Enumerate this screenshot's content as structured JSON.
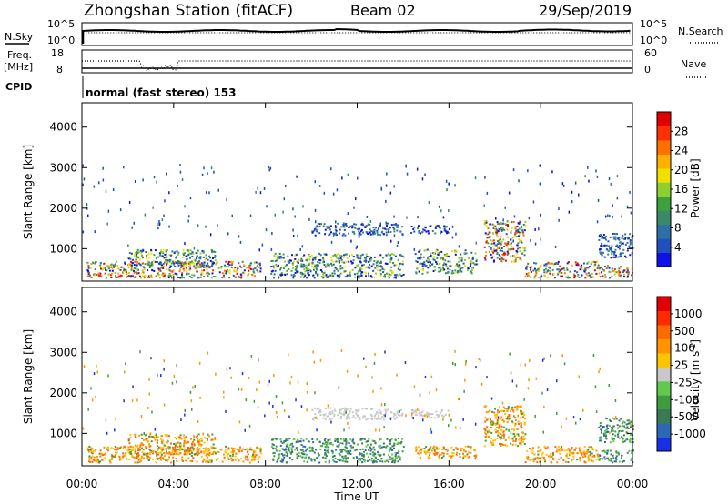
{
  "header": {
    "station": "Zhongshan Station (fitACF)",
    "beam": "Beam 02",
    "date": "29/Sep/2019"
  },
  "top_panels": {
    "nsky_label": "N.Sky",
    "nsky_ticks": [
      "10^5",
      "10^0"
    ],
    "nsearch_label": "N.Search",
    "freq_label": "Freq.",
    "freq_unit": "[MHz]",
    "freq_ticks": [
      "18",
      "8"
    ],
    "nave_ticks": [
      "60",
      "0"
    ],
    "nave_label": "Nave",
    "cpid_label": "CPID",
    "cpid_text": "normal (fast stereo) 153"
  },
  "chart_data": [
    {
      "type": "heatmap",
      "name": "power",
      "ylabel": "Slant Range [km]",
      "yticks": [
        1000,
        2000,
        3000,
        4000
      ],
      "ylim": [
        200,
        4600
      ],
      "xticks": [
        "00:00",
        "04:00",
        "08:00",
        "12:00",
        "16:00",
        "20:00",
        "00:00"
      ],
      "xlim_hours": [
        0,
        24
      ],
      "colorbar": {
        "label": "Power [dB]",
        "ticks": [
          "4",
          "8",
          "12",
          "16",
          "20",
          "24",
          "28"
        ],
        "colors": [
          "#1010e8",
          "#2050c0",
          "#2e6fa8",
          "#3a8a6a",
          "#3da23d",
          "#8ed030",
          "#f0e000",
          "#ffb000",
          "#ff7000",
          "#ff3000",
          "#e00000"
        ]
      },
      "bands": [
        {
          "t0": 0.2,
          "t1": 7.8,
          "r0": 300,
          "r1": 700,
          "level": "high"
        },
        {
          "t0": 2.0,
          "t1": 5.8,
          "r0": 600,
          "r1": 1000,
          "level": "mid"
        },
        {
          "t0": 8.2,
          "t1": 14.0,
          "r0": 300,
          "r1": 900,
          "level": "mid"
        },
        {
          "t0": 10.0,
          "t1": 14.0,
          "r0": 1350,
          "r1": 1650,
          "level": "low"
        },
        {
          "t0": 14.3,
          "t1": 16.0,
          "r0": 1400,
          "r1": 1600,
          "level": "low"
        },
        {
          "t0": 14.5,
          "t1": 17.2,
          "r0": 400,
          "r1": 1000,
          "level": "mid"
        },
        {
          "t0": 17.5,
          "t1": 19.3,
          "r0": 700,
          "r1": 1700,
          "level": "high"
        },
        {
          "t0": 19.3,
          "t1": 22.5,
          "r0": 300,
          "r1": 700,
          "level": "high"
        },
        {
          "t0": 22.5,
          "t1": 24.0,
          "r0": 800,
          "r1": 1400,
          "level": "low"
        },
        {
          "t0": 22.5,
          "t1": 24.0,
          "r0": 300,
          "r1": 600,
          "level": "high"
        }
      ]
    },
    {
      "type": "heatmap",
      "name": "velocity",
      "ylabel": "Slant Range [km]",
      "yticks": [
        1000,
        2000,
        3000,
        4000
      ],
      "ylim": [
        200,
        4600
      ],
      "xticks": [
        "00:00",
        "04:00",
        "08:00",
        "12:00",
        "16:00",
        "20:00",
        "00:00"
      ],
      "xlabel": "Time UT",
      "xlim_hours": [
        0,
        24
      ],
      "colorbar": {
        "label": "Velocity [m s^-1]",
        "ticks": [
          "1000",
          "500",
          "100",
          "25",
          "-25",
          "-100",
          "-500",
          "-1000"
        ],
        "colors": [
          "#1a2ee8",
          "#2f67b8",
          "#3a7a55",
          "#3f9b3f",
          "#62c850",
          "#c8c8c8",
          "#ffc400",
          "#ff9400",
          "#ff6a00",
          "#ff2a00",
          "#e00000"
        ]
      },
      "bands": [
        {
          "t0": 0.2,
          "t1": 7.8,
          "r0": 300,
          "r1": 700,
          "level": "neg"
        },
        {
          "t0": 2.0,
          "t1": 5.8,
          "r0": 500,
          "r1": 1000,
          "level": "neg"
        },
        {
          "t0": 8.2,
          "t1": 14.0,
          "r0": 300,
          "r1": 900,
          "level": "pos"
        },
        {
          "t0": 10.0,
          "t1": 14.0,
          "r0": 1350,
          "r1": 1650,
          "level": "zero"
        },
        {
          "t0": 14.3,
          "t1": 16.0,
          "r0": 1400,
          "r1": 1600,
          "level": "zero"
        },
        {
          "t0": 14.5,
          "t1": 17.2,
          "r0": 400,
          "r1": 700,
          "level": "neg"
        },
        {
          "t0": 17.5,
          "t1": 19.3,
          "r0": 700,
          "r1": 1700,
          "level": "neg"
        },
        {
          "t0": 19.3,
          "t1": 22.5,
          "r0": 300,
          "r1": 700,
          "level": "neg"
        },
        {
          "t0": 22.5,
          "t1": 24.0,
          "r0": 800,
          "r1": 1400,
          "level": "pos"
        },
        {
          "t0": 22.5,
          "t1": 24.0,
          "r0": 300,
          "r1": 600,
          "level": "pos"
        }
      ]
    }
  ]
}
